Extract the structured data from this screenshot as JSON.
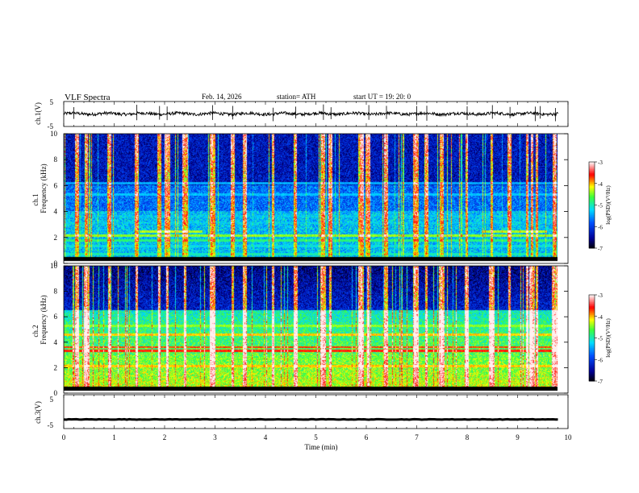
{
  "header": {
    "title": "VLF  Spectra",
    "date": "Feb. 14, 2026",
    "station": "station= ATH",
    "start_ut": "start  UT  =   19: 20: 0"
  },
  "chart_data": [
    {
      "type": "line",
      "panel": "ch1-waveform",
      "ylabel": "ch.1(V)",
      "ylim": [
        -5,
        5
      ],
      "yticks": [
        "5",
        "-5"
      ],
      "xlim": [
        0,
        10
      ],
      "baseline": 0.1,
      "noise_amplitude": 0.6,
      "spike_times_min": [
        0.2,
        1.45,
        1.9,
        2.05,
        2.95,
        3.35,
        4.15,
        4.6,
        5.15,
        5.3,
        6.05,
        6.4,
        7.0,
        7.2,
        8.0,
        8.5,
        8.85,
        9.35,
        9.45,
        9.75
      ]
    },
    {
      "type": "heatmap",
      "panel": "ch1-spectrogram",
      "ylabel": "ch.1",
      "ylabel2": "Frequency (kHz)",
      "ylim": [
        0,
        10
      ],
      "yticks": [
        "0",
        "2",
        "4",
        "6",
        "8",
        "10"
      ],
      "xlim": [
        0,
        9.8
      ],
      "colorbar": {
        "zlim": [
          -7,
          -3
        ],
        "ticks": [
          "-3",
          "-4",
          "-5",
          "-6",
          "-7"
        ],
        "label": "log(PSD)(V²/Hz)"
      },
      "bands": [
        {
          "f": 0.3,
          "level": -4.2
        },
        {
          "f": 0.7,
          "level": -5.0
        },
        {
          "f": 1.3,
          "level": -5.2
        },
        {
          "f": 1.75,
          "level": -4.8
        },
        {
          "f": 2.15,
          "level": -4.4
        },
        {
          "f": 2.45,
          "level": -4.3,
          "t_from": 1.5,
          "t_to": 2.75
        },
        {
          "f": 2.45,
          "level": -4.3,
          "t_from": 8.3,
          "t_to": 9.6
        },
        {
          "f": 3.1,
          "level": -5.4
        },
        {
          "f": 3.6,
          "level": -5.4
        },
        {
          "f": 5.3,
          "level": -5.3
        },
        {
          "f": 6.2,
          "level": -5.4
        }
      ],
      "sferic_times_min": [
        0.25,
        0.45,
        0.9,
        1.45,
        1.9,
        2.05,
        2.4,
        2.95,
        3.35,
        3.6,
        4.15,
        4.6,
        5.15,
        5.3,
        5.9,
        6.05,
        6.4,
        7.0,
        7.2,
        7.5,
        8.0,
        8.5,
        8.85,
        9.2,
        9.3,
        9.4,
        9.75
      ]
    },
    {
      "type": "heatmap",
      "panel": "ch2-spectrogram",
      "ylabel": "ch.2",
      "ylabel2": "Frequency (kHz)",
      "ylim": [
        0,
        10
      ],
      "yticks": [
        "0",
        "2",
        "4",
        "6",
        "8",
        "10"
      ],
      "xlim": [
        0,
        9.8
      ],
      "colorbar": {
        "zlim": [
          -7,
          -3
        ],
        "ticks": [
          "-3",
          "-4",
          "-5",
          "-6",
          "-7"
        ],
        "label": "log(PSD)(V²/Hz)"
      },
      "bands": [
        {
          "f": 0.4,
          "level": -3.8
        },
        {
          "f": 0.9,
          "level": -4.5
        },
        {
          "f": 1.5,
          "level": -4.7
        },
        {
          "f": 2.1,
          "level": -4.0
        },
        {
          "f": 2.7,
          "level": -4.6
        },
        {
          "f": 3.3,
          "level": -3.6
        },
        {
          "f": 3.6,
          "level": -3.7
        },
        {
          "f": 4.6,
          "level": -4.0
        },
        {
          "f": 5.3,
          "level": -4.4
        }
      ],
      "sferic_times_min": [
        0.25,
        0.45,
        0.9,
        1.45,
        1.9,
        2.05,
        2.4,
        2.95,
        3.35,
        3.6,
        4.15,
        4.6,
        5.15,
        5.3,
        5.9,
        6.05,
        6.4,
        7.0,
        7.2,
        7.5,
        8.0,
        8.5,
        8.85,
        9.2,
        9.3,
        9.4,
        9.75
      ]
    },
    {
      "type": "line",
      "panel": "ch3-waveform",
      "ylabel": "ch.3(V)",
      "ylim": [
        -5,
        5
      ],
      "yticks": [
        "5",
        "-5"
      ],
      "xlim": [
        0,
        10
      ],
      "baseline": -2.3,
      "noise_amplitude": 0.15,
      "xlabel": "Time  (min)",
      "xticks": [
        "0",
        "1",
        "2",
        "3",
        "4",
        "5",
        "6",
        "7",
        "8",
        "9",
        "10"
      ]
    }
  ]
}
